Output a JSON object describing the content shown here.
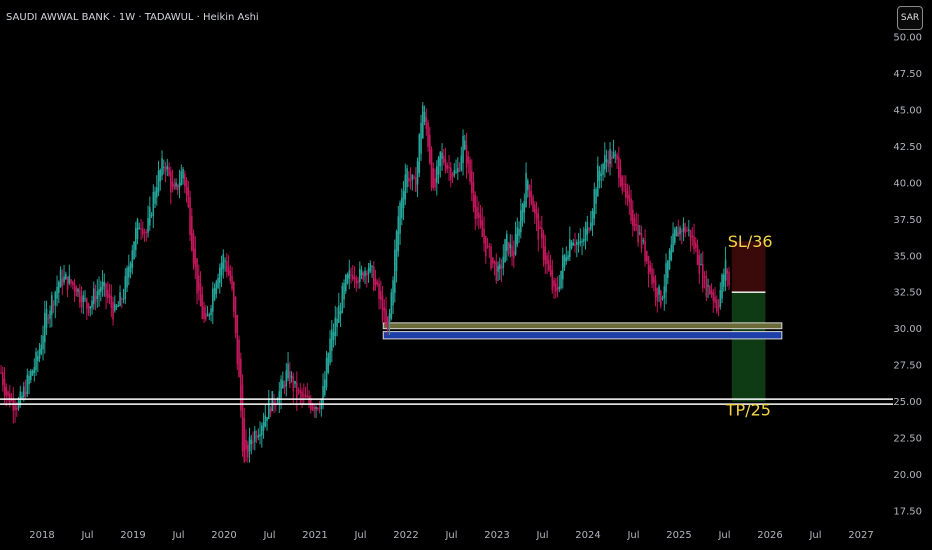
{
  "header": {
    "title": "SAUDI AWWAL BANK · 1W · TADAWUL · Heikin Ashi",
    "currency_button": "SAR"
  },
  "chart_data": {
    "type": "candlestick",
    "chart_style": "Heikin Ashi",
    "ylim": [
      17.5,
      50
    ],
    "yticks": [
      "50.00",
      "47.50",
      "45.00",
      "42.50",
      "40.00",
      "37.50",
      "35.00",
      "32.50",
      "30.00",
      "27.50",
      "25.00",
      "22.50",
      "20.00",
      "17.50"
    ],
    "xticks": [
      {
        "label": "2018",
        "t": 2018.0
      },
      {
        "label": "Jul",
        "t": 2018.5
      },
      {
        "label": "2019",
        "t": 2019.0
      },
      {
        "label": "Jul",
        "t": 2019.5
      },
      {
        "label": "2020",
        "t": 2020.0
      },
      {
        "label": "Jul",
        "t": 2020.5
      },
      {
        "label": "2021",
        "t": 2021.0
      },
      {
        "label": "Jul",
        "t": 2021.5
      },
      {
        "label": "2022",
        "t": 2022.0
      },
      {
        "label": "Jul",
        "t": 2022.5
      },
      {
        "label": "2023",
        "t": 2023.0
      },
      {
        "label": "Jul",
        "t": 2023.5
      },
      {
        "label": "2024",
        "t": 2024.0
      },
      {
        "label": "Jul",
        "t": 2024.5
      },
      {
        "label": "2025",
        "t": 2025.0
      },
      {
        "label": "Jul",
        "t": 2025.5
      },
      {
        "label": "2026",
        "t": 2026.0
      },
      {
        "label": "Jul",
        "t": 2026.5
      },
      {
        "label": "2027",
        "t": 2027.0
      }
    ],
    "price_path": [
      [
        2017.55,
        27.0
      ],
      [
        2017.62,
        25.2
      ],
      [
        2017.75,
        24.8
      ],
      [
        2017.85,
        26.5
      ],
      [
        2017.95,
        28.0
      ],
      [
        2018.05,
        31.0
      ],
      [
        2018.2,
        33.5
      ],
      [
        2018.35,
        33.0
      ],
      [
        2018.5,
        31.5
      ],
      [
        2018.65,
        33.0
      ],
      [
        2018.8,
        31.0
      ],
      [
        2018.9,
        32.5
      ],
      [
        2019.0,
        36.0
      ],
      [
        2019.08,
        37.5
      ],
      [
        2019.15,
        36.5
      ],
      [
        2019.25,
        40.0
      ],
      [
        2019.35,
        41.5
      ],
      [
        2019.45,
        39.0
      ],
      [
        2019.55,
        41.0
      ],
      [
        2019.62,
        37.5
      ],
      [
        2019.72,
        32.0
      ],
      [
        2019.8,
        30.0
      ],
      [
        2019.9,
        33.5
      ],
      [
        2020.0,
        35.0
      ],
      [
        2020.08,
        33.0
      ],
      [
        2020.17,
        26.0
      ],
      [
        2020.22,
        20.5
      ],
      [
        2020.3,
        22.5
      ],
      [
        2020.4,
        23.5
      ],
      [
        2020.5,
        24.8
      ],
      [
        2020.6,
        25.5
      ],
      [
        2020.7,
        27.0
      ],
      [
        2020.8,
        25.5
      ],
      [
        2020.9,
        25.0
      ],
      [
        2021.0,
        24.8
      ],
      [
        2021.08,
        25.2
      ],
      [
        2021.16,
        29.0
      ],
      [
        2021.25,
        31.0
      ],
      [
        2021.33,
        33.0
      ],
      [
        2021.42,
        34.0
      ],
      [
        2021.5,
        33.5
      ],
      [
        2021.58,
        34.5
      ],
      [
        2021.66,
        33.0
      ],
      [
        2021.75,
        31.0
      ],
      [
        2021.8,
        29.5
      ],
      [
        2021.86,
        34.0
      ],
      [
        2021.92,
        38.0
      ],
      [
        2022.0,
        41.0
      ],
      [
        2022.1,
        39.5
      ],
      [
        2022.18,
        45.5
      ],
      [
        2022.25,
        42.5
      ],
      [
        2022.3,
        39.0
      ],
      [
        2022.38,
        42.0
      ],
      [
        2022.47,
        41.0
      ],
      [
        2022.56,
        40.5
      ],
      [
        2022.63,
        43.0
      ],
      [
        2022.72,
        39.5
      ],
      [
        2022.8,
        37.0
      ],
      [
        2022.88,
        35.5
      ],
      [
        2022.95,
        34.5
      ],
      [
        2023.02,
        33.5
      ],
      [
        2023.1,
        36.0
      ],
      [
        2023.18,
        35.0
      ],
      [
        2023.26,
        38.0
      ],
      [
        2023.33,
        40.5
      ],
      [
        2023.42,
        37.5
      ],
      [
        2023.5,
        35.5
      ],
      [
        2023.58,
        33.5
      ],
      [
        2023.64,
        32.0
      ],
      [
        2023.72,
        34.5
      ],
      [
        2023.82,
        36.5
      ],
      [
        2023.92,
        35.5
      ],
      [
        2024.02,
        37.5
      ],
      [
        2024.1,
        40.5
      ],
      [
        2024.18,
        41.5
      ],
      [
        2024.26,
        42.0
      ],
      [
        2024.34,
        41.0
      ],
      [
        2024.42,
        38.5
      ],
      [
        2024.5,
        37.5
      ],
      [
        2024.58,
        36.0
      ],
      [
        2024.66,
        34.5
      ],
      [
        2024.72,
        33.0
      ],
      [
        2024.8,
        32.0
      ],
      [
        2024.88,
        34.5
      ],
      [
        2024.96,
        36.5
      ],
      [
        2025.04,
        37.0
      ],
      [
        2025.12,
        36.5
      ],
      [
        2025.2,
        35.0
      ],
      [
        2025.28,
        33.0
      ],
      [
        2025.36,
        32.5
      ],
      [
        2025.42,
        31.5
      ],
      [
        2025.48,
        33.5
      ],
      [
        2025.52,
        34.5
      ],
      [
        2025.55,
        33.0
      ]
    ],
    "zones": [
      {
        "name": "upper-demand-zone",
        "from": 30.0,
        "to": 30.4,
        "t_start": 2021.75,
        "t_end": 2026.13,
        "color": "#6b6b3a"
      },
      {
        "name": "lower-demand-zone",
        "from": 29.3,
        "to": 29.8,
        "t_start": 2021.75,
        "t_end": 2026.13,
        "color": "#1f3fa8"
      }
    ],
    "support_line": {
      "value": 25.0,
      "color": "#ffffff"
    },
    "trade": {
      "entry": 32.5,
      "stop_loss": 36.0,
      "take_profit": 25.0,
      "t_start": 2025.58,
      "t_end": 2025.95,
      "sl_label": "SL/36",
      "tp_label": "TP/25",
      "sl_color": "#3a0a0a",
      "tp_color": "#0e3a14"
    },
    "colors": {
      "up": "#26a69a",
      "down": "#c2185b",
      "grid": "#111111",
      "annotation": "#f5d547"
    }
  }
}
